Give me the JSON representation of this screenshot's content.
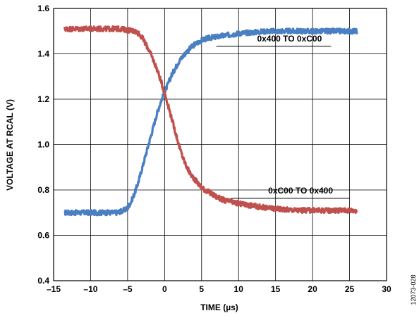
{
  "figure_id": "12073-028",
  "chart_data": {
    "type": "line",
    "xlabel": "TIME (µs)",
    "ylabel": "VOLTAGE AT RCAL (V)",
    "xlim": [
      -15,
      30
    ],
    "ylim": [
      0.4,
      1.6
    ],
    "x_ticks": [
      -15,
      -10,
      -5,
      0,
      5,
      10,
      15,
      20,
      25,
      30
    ],
    "x_tick_labels": [
      "–15",
      "–10",
      "–5",
      "0",
      "5",
      "10",
      "15",
      "20",
      "25",
      "30"
    ],
    "y_ticks": [
      0.4,
      0.6,
      0.8,
      1.0,
      1.2,
      1.4,
      1.6
    ],
    "y_tick_labels": [
      "0.4",
      "0.6",
      "0.8",
      "1.0",
      "1.2",
      "1.4",
      "1.6"
    ],
    "grid": true,
    "series": [
      {
        "name": "0x400 TO 0xC00",
        "color": "#4a7fc1",
        "x": [
          -13.5,
          -12,
          -10,
          -8,
          -6.5,
          -5.5,
          -5,
          -4.5,
          -4,
          -3.5,
          -3,
          -2.5,
          -2,
          -1.5,
          -1,
          -0.5,
          0,
          0.5,
          1,
          1.5,
          2,
          3,
          4,
          5,
          6,
          8,
          10,
          12,
          14,
          16,
          18,
          20,
          22,
          24,
          26
        ],
        "y": [
          0.7,
          0.7,
          0.7,
          0.7,
          0.7,
          0.71,
          0.72,
          0.75,
          0.79,
          0.84,
          0.9,
          0.96,
          1.02,
          1.08,
          1.14,
          1.19,
          1.23,
          1.27,
          1.31,
          1.34,
          1.37,
          1.41,
          1.44,
          1.46,
          1.47,
          1.48,
          1.49,
          1.495,
          1.5,
          1.5,
          1.5,
          1.5,
          1.5,
          1.5,
          1.5
        ]
      },
      {
        "name": "0xC00 TO 0x400",
        "color": "#c0504d",
        "x": [
          -13.5,
          -12,
          -10,
          -8,
          -6,
          -4,
          -3.5,
          -3,
          -2.5,
          -2,
          -1.5,
          -1,
          -0.5,
          0,
          0.5,
          1,
          1.5,
          2,
          2.5,
          3,
          3.5,
          4,
          4.5,
          5,
          6,
          7,
          8,
          10,
          12,
          14,
          16,
          18,
          20,
          22,
          24,
          26
        ],
        "y": [
          1.51,
          1.51,
          1.51,
          1.51,
          1.51,
          1.5,
          1.49,
          1.47,
          1.44,
          1.41,
          1.37,
          1.33,
          1.28,
          1.23,
          1.17,
          1.11,
          1.05,
          0.99,
          0.94,
          0.9,
          0.87,
          0.85,
          0.83,
          0.81,
          0.79,
          0.77,
          0.755,
          0.74,
          0.73,
          0.72,
          0.715,
          0.71,
          0.71,
          0.71,
          0.71,
          0.71
        ]
      }
    ],
    "annotations": [
      {
        "text": "0x400 TO 0xC00",
        "series": 0
      },
      {
        "text": "0xC00 TO 0x400",
        "series": 1
      }
    ]
  }
}
